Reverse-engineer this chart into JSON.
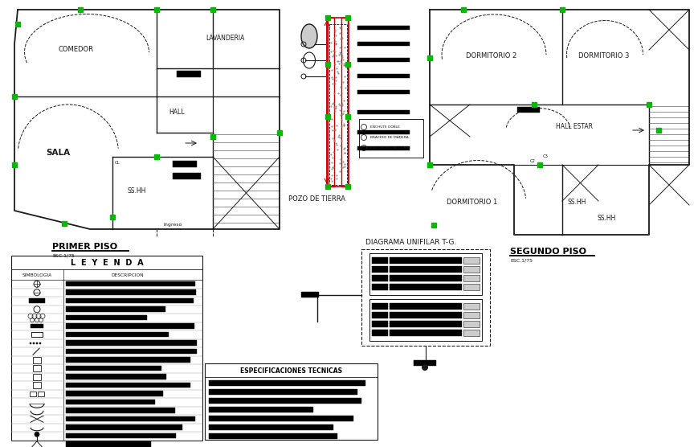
{
  "bg_color": "#ffffff",
  "primer_piso_label": "PRIMER PISO",
  "primer_piso_sub": "ESC.1/75",
  "segundo_piso_label": "SEGUNDO PISO",
  "segundo_piso_sub": "ESC.1/75",
  "pozo_label": "POZO DE TIERRA",
  "diagrama_label": "DIAGRAMA UNIFILAR T-G.",
  "leyenda_title": "L  E  Y  E  N  D  A",
  "especif_title": "ESPECIFICACIONES TECNICAS",
  "line_color": "#1a1a1a",
  "green_color": "#00bb00",
  "red_color": "#cc0000",
  "white": "#ffffff",
  "black": "#000000",
  "gray": "#aaaaaa"
}
